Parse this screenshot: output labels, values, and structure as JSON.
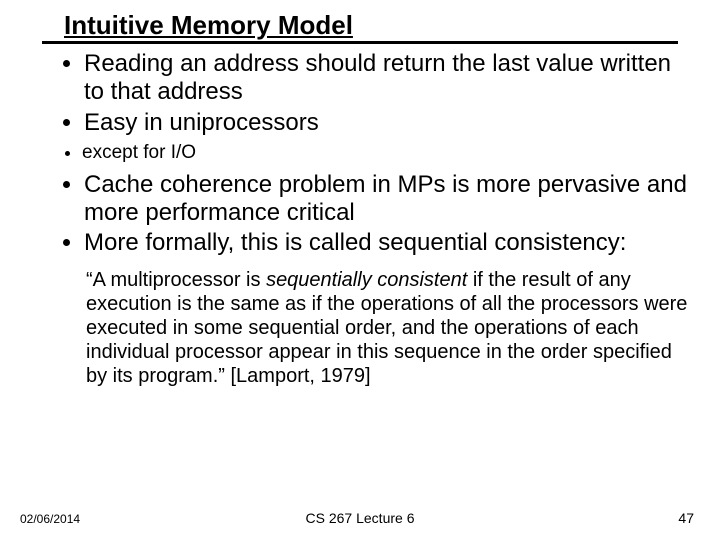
{
  "title": "Intuitive Memory Model",
  "bullets": {
    "b1": "Reading an address should return the last value written to that address",
    "b2": "Easy in uniprocessors",
    "b2_1": "except for I/O",
    "b3": "Cache coherence problem in MPs is more pervasive and more performance critical",
    "b4": "More formally, this is called sequential consistency:"
  },
  "quote": {
    "lead": "“A multiprocessor is ",
    "em": "sequentially consistent",
    "rest": " if the result of any execution is the same as if the operations of all the processors were executed in some sequential order, and the operations of each individual processor appear in this sequence in the order specified by its program.” [Lamport, 1979]"
  },
  "footer": {
    "date": "02/06/2014",
    "center": "CS 267 Lecture 6",
    "page": "47"
  },
  "colors": {
    "text": "#000000",
    "background": "#ffffff",
    "rule": "#000000"
  },
  "fonts": {
    "title_size_pt": 26,
    "body_size_pt": 24,
    "sub_size_pt": 19,
    "quote_size_pt": 20,
    "footer_size_pt": 12
  }
}
